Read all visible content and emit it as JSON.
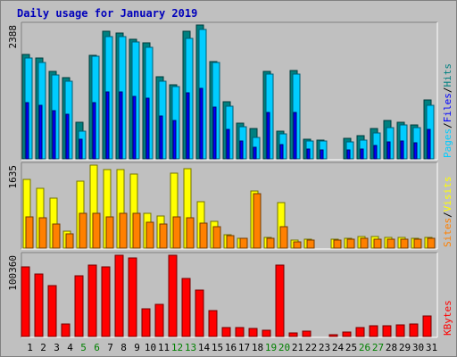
{
  "chart_data": {
    "type": "bar",
    "title": "Daily usage for January 2019",
    "categories": [
      "1",
      "2",
      "3",
      "4",
      "5",
      "6",
      "7",
      "8",
      "9",
      "10",
      "11",
      "12",
      "13",
      "14",
      "15",
      "16",
      "17",
      "18",
      "19",
      "20",
      "21",
      "22",
      "23",
      "24",
      "25",
      "26",
      "27",
      "28",
      "29",
      "30",
      "31"
    ],
    "weekend_days": [
      "5",
      "6",
      "12",
      "13",
      "19",
      "20",
      "26",
      "27"
    ],
    "panels": [
      {
        "name": "pages-files-hits",
        "y_max": 2388,
        "y_max_label": "2388",
        "legend": [
          "Pages",
          "/",
          "Files",
          "/",
          "Hits"
        ],
        "series": [
          {
            "name": "Hits",
            "color": "#008080",
            "values": [
              1860,
              1798,
              1565,
              1450,
              650,
              1850,
              2278,
              2238,
              2139,
              2065,
              1470,
              1324,
              2278,
              2388,
              1740,
              1018,
              640,
              547,
              1566,
              497,
              1570,
              356,
              335,
              0,
              360,
              410,
              540,
              690,
              648,
              610,
              1050
            ]
          },
          {
            "name": "Files",
            "color": "#00ccff",
            "values": [
              1800,
              1720,
              1500,
              1380,
              500,
              1830,
              2188,
              2188,
              2080,
              1990,
              1390,
              1290,
              2148,
              2308,
              1720,
              940,
              580,
              390,
              1518,
              450,
              1510,
              316,
              320,
              0,
              300,
              340,
              460,
              560,
              610,
              560,
              950
            ]
          },
          {
            "name": "Pages",
            "color": "#0000ff",
            "values": [
              1000,
              960,
              860,
              790,
              350,
              1000,
              1200,
              1190,
              1120,
              1090,
              770,
              690,
              1180,
              1260,
              930,
              520,
              320,
              200,
              830,
              250,
              820,
              170,
              160,
              0,
              160,
              180,
              240,
              300,
              320,
              290,
              520
            ]
          }
        ]
      },
      {
        "name": "visits-sites",
        "y_max": 1635,
        "y_max_label": "1635",
        "legend": [
          "Sites",
          "/",
          "Visits"
        ],
        "series": [
          {
            "name": "Visits",
            "color": "#ffff00",
            "values": [
              1355,
              1185,
              986,
              339,
              1318,
              1635,
              1555,
              1555,
              1460,
              690,
              635,
              1472,
              1570,
              910,
              525,
              266,
              196,
              1130,
              208,
              895,
              150,
              170,
              0,
              170,
              200,
              235,
              225,
              215,
              205,
              200,
              210
            ]
          },
          {
            "name": "Sites",
            "color": "#ff8000",
            "values": [
              620,
              605,
              480,
              282,
              682,
              692,
              620,
              692,
              680,
              518,
              480,
              620,
              600,
              498,
              430,
              242,
              186,
              1070,
              196,
              425,
              125,
              155,
              0,
              155,
              180,
              190,
              180,
              182,
              175,
              170,
              185
            ]
          }
        ]
      },
      {
        "name": "kbytes",
        "y_max": 100360,
        "y_max_label": "100360",
        "legend": [
          "KBytes"
        ],
        "series": [
          {
            "name": "KBytes",
            "color": "#ff0000",
            "values": [
              86500,
              77500,
              63000,
              15000,
              75500,
              88500,
              85500,
              100360,
              97000,
              34000,
              40000,
              100360,
              72000,
              57000,
              32000,
              11000,
              11000,
              10000,
              8000,
              88500,
              4200,
              6500,
              0,
              2000,
              6000,
              11000,
              13000,
              13500,
              14000,
              15000,
              25000
            ]
          }
        ]
      }
    ],
    "colors": {
      "background": "#c0c0c0",
      "title": "#0000bb",
      "weekend_label": "#008000",
      "frame_light": "#ffffff",
      "frame_dark": "#808080"
    }
  }
}
